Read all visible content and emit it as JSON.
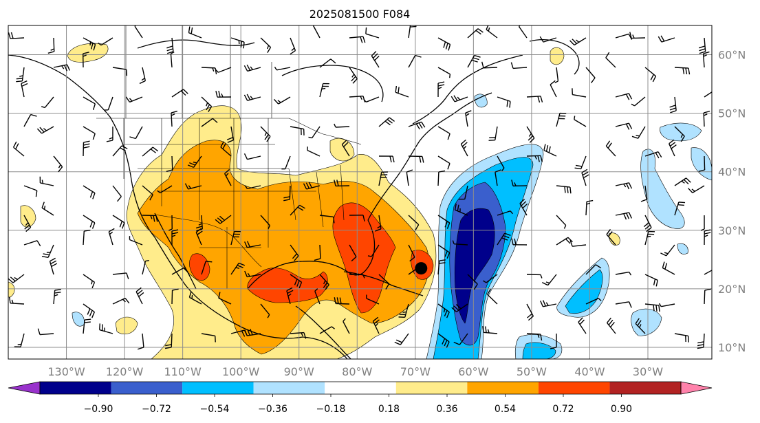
{
  "title": "2025081500 F084",
  "map": {
    "lon_range": [
      -140,
      -19
    ],
    "lat_range": [
      8,
      65
    ],
    "lon_ticks": [
      -130,
      -120,
      -110,
      -100,
      -90,
      -80,
      -70,
      -60,
      -50,
      -40,
      -30
    ],
    "lon_labels": [
      "130°W",
      "120°W",
      "110°W",
      "100°W",
      "90°W",
      "80°W",
      "70°W",
      "60°W",
      "50°W",
      "40°W",
      "30°W"
    ],
    "lat_ticks": [
      10,
      20,
      30,
      40,
      50,
      60
    ],
    "lat_labels": [
      "10°N",
      "20°N",
      "30°N",
      "40°N",
      "50°N",
      "60°N"
    ],
    "gridlines": true,
    "marker": {
      "lon": -69,
      "lat": 23.5,
      "color": "#000000"
    }
  },
  "colorbar": {
    "ticks": [
      "−0.90",
      "−0.72",
      "−0.54",
      "−0.36",
      "−0.18",
      "0.18",
      "0.36",
      "0.54",
      "0.72",
      "0.90"
    ],
    "colors": [
      "#9932cc",
      "#00008b",
      "#3a5fcd",
      "#00bfff",
      "#b0e2ff",
      "#ffffff",
      "#ffec8b",
      "#ffa500",
      "#ff4500",
      "#b22222",
      "#ff82ab"
    ],
    "extend": "both"
  }
}
